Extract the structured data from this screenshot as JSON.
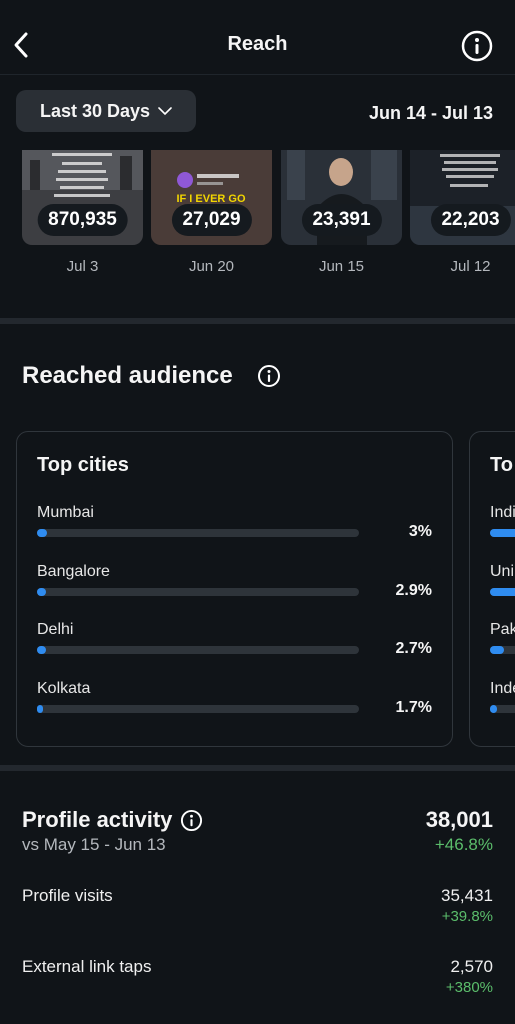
{
  "header": {
    "title": "Reach"
  },
  "filter": {
    "range_label": "Last 30 Days",
    "date_range": "Jun 14 - Jul 13"
  },
  "posts": [
    {
      "count": "870,935",
      "date": "Jul 3"
    },
    {
      "count": "27,029",
      "date": "Jun 20",
      "overlay_text": "IF I EVER GO"
    },
    {
      "count": "23,391",
      "date": "Jun 15"
    },
    {
      "count": "22,203",
      "date": "Jul 12"
    }
  ],
  "reached_audience": {
    "title": "Reached audience",
    "top_cities": {
      "title": "Top cities",
      "items": [
        {
          "name": "Mumbai",
          "pct": "3%",
          "value": 3
        },
        {
          "name": "Bangalore",
          "pct": "2.9%",
          "value": 2.9
        },
        {
          "name": "Delhi",
          "pct": "2.7%",
          "value": 2.7
        },
        {
          "name": "Kolkata",
          "pct": "1.7%",
          "value": 1.7
        }
      ]
    },
    "top_countries": {
      "title": "To",
      "items": [
        "Indi",
        "Uni",
        "Pak",
        "Inde"
      ]
    }
  },
  "profile_activity": {
    "title": "Profile activity",
    "compare": "vs May 15 - Jun 13",
    "total": "38,001",
    "total_change": "+46.8%",
    "rows": [
      {
        "label": "Profile visits",
        "value": "35,431",
        "change": "+39.8%"
      },
      {
        "label": "External link taps",
        "value": "2,570",
        "change": "+380%"
      }
    ]
  },
  "colors": {
    "accent": "#2f8cf0",
    "positive": "#5bbd6b",
    "background": "#101418"
  }
}
